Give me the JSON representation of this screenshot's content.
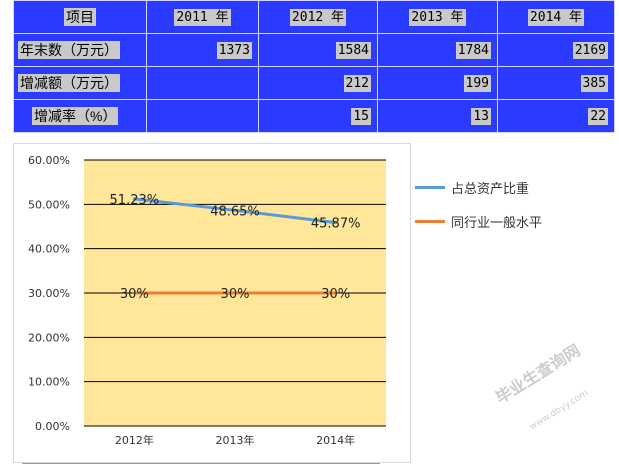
{
  "table": {
    "header": [
      "项目",
      "2011 年",
      "2012 年",
      "2013 年",
      "2014 年"
    ],
    "rows": [
      {
        "label": "年末数（万元）",
        "values": [
          "1373",
          "1584",
          "1784",
          "2169"
        ]
      },
      {
        "label": "增减额（万元）",
        "values": [
          "",
          "212",
          "199",
          "385"
        ]
      },
      {
        "label": "增减率（%）",
        "values": [
          "",
          "15",
          "13",
          "22"
        ]
      }
    ]
  },
  "chart_data": {
    "type": "line",
    "categories": [
      "2012年",
      "2013年",
      "2014年"
    ],
    "series": [
      {
        "name": "占总资产比重",
        "values": [
          51.23,
          48.65,
          45.87
        ],
        "labels": [
          "51.23%",
          "48.65%",
          "45.87%"
        ],
        "color": "#5b9bd5"
      },
      {
        "name": "同行业一般水平",
        "values": [
          30,
          30,
          30
        ],
        "labels": [
          "30%",
          "30%",
          "30%"
        ],
        "color": "#ed7d31"
      }
    ],
    "ylim": [
      0,
      60
    ],
    "yticks": [
      "0.00%",
      "10.00%",
      "20.00%",
      "30.00%",
      "40.00%",
      "50.00%",
      "60.00%"
    ],
    "grid": true,
    "plot_background": "#ffe699",
    "legend": "right"
  },
  "watermark": {
    "text": "毕业生查询网",
    "url": "www.dbyy.com"
  }
}
